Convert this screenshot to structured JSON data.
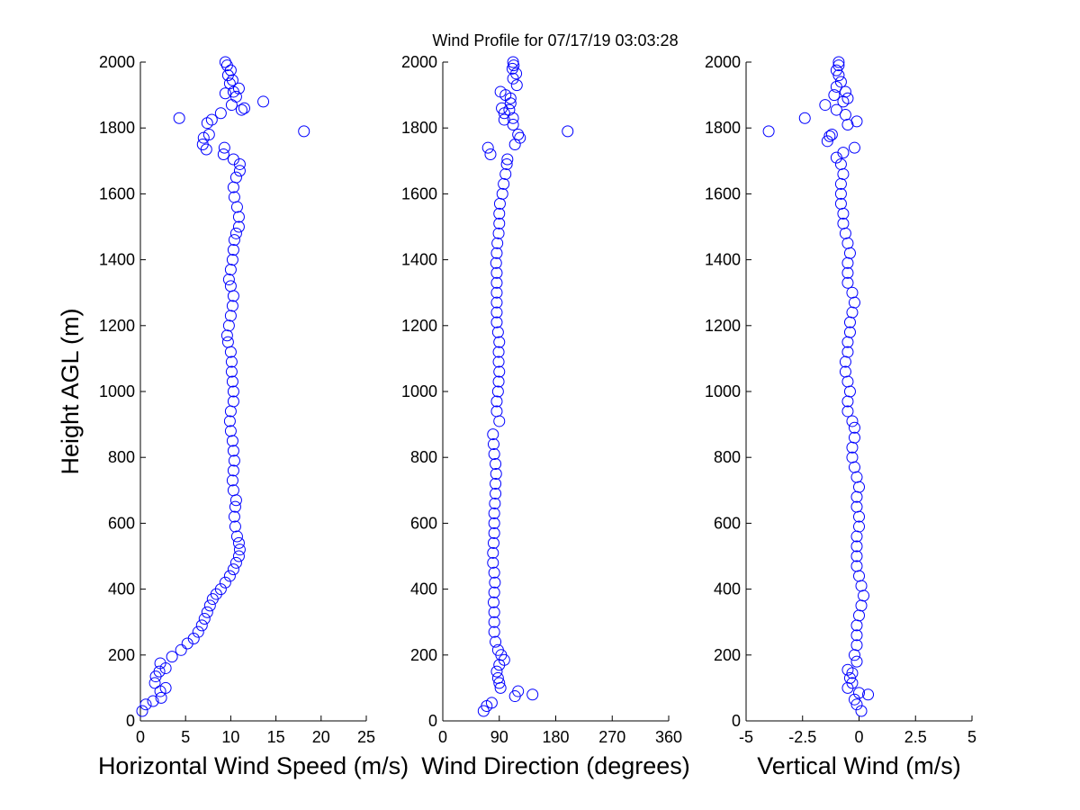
{
  "figure_title": "Wind Profile for  07/17/19 03:03:28",
  "colors": {
    "marker": "#0000ff",
    "axis": "#000000",
    "background": "#ffffff"
  },
  "chart_data": [
    {
      "type": "scatter",
      "xlabel": "Horizontal Wind Speed (m/s)",
      "ylabel": "Height AGL (m)",
      "xlim": [
        0,
        25
      ],
      "ylim": [
        0,
        2000
      ],
      "xticks": [
        "0",
        "5",
        "10",
        "15",
        "20",
        "25"
      ],
      "yticks": [
        "0",
        "200",
        "400",
        "600",
        "800",
        "1000",
        "1200",
        "1400",
        "1600",
        "1800",
        "2000"
      ],
      "marker": "open-circle",
      "grid": false,
      "points": [
        [
          0.2,
          30
        ],
        [
          0.6,
          50
        ],
        [
          1.4,
          60
        ],
        [
          2.3,
          70
        ],
        [
          2.8,
          100
        ],
        [
          2.2,
          90
        ],
        [
          1.6,
          115
        ],
        [
          1.7,
          135
        ],
        [
          2.1,
          150
        ],
        [
          2.8,
          160
        ],
        [
          2.2,
          175
        ],
        [
          3.5,
          195
        ],
        [
          4.5,
          215
        ],
        [
          5.2,
          235
        ],
        [
          5.9,
          250
        ],
        [
          6.4,
          270
        ],
        [
          6.8,
          290
        ],
        [
          7.1,
          310
        ],
        [
          7.4,
          330
        ],
        [
          7.7,
          350
        ],
        [
          8.0,
          370
        ],
        [
          8.4,
          385
        ],
        [
          8.9,
          400
        ],
        [
          9.4,
          420
        ],
        [
          9.9,
          440
        ],
        [
          10.3,
          460
        ],
        [
          10.6,
          480
        ],
        [
          10.9,
          500
        ],
        [
          11.0,
          520
        ],
        [
          10.9,
          540
        ],
        [
          10.7,
          560
        ],
        [
          10.5,
          590
        ],
        [
          10.4,
          620
        ],
        [
          10.5,
          650
        ],
        [
          10.6,
          670
        ],
        [
          10.3,
          700
        ],
        [
          10.2,
          730
        ],
        [
          10.3,
          760
        ],
        [
          10.4,
          790
        ],
        [
          10.3,
          820
        ],
        [
          10.2,
          850
        ],
        [
          10.0,
          880
        ],
        [
          9.9,
          910
        ],
        [
          10.0,
          940
        ],
        [
          10.3,
          970
        ],
        [
          10.3,
          1000
        ],
        [
          10.2,
          1030
        ],
        [
          10.1,
          1060
        ],
        [
          10.1,
          1090
        ],
        [
          10.0,
          1120
        ],
        [
          9.7,
          1150
        ],
        [
          9.6,
          1170
        ],
        [
          9.8,
          1200
        ],
        [
          10.0,
          1230
        ],
        [
          10.2,
          1260
        ],
        [
          10.3,
          1290
        ],
        [
          10.0,
          1320
        ],
        [
          9.8,
          1340
        ],
        [
          10.0,
          1370
        ],
        [
          10.2,
          1400
        ],
        [
          10.3,
          1430
        ],
        [
          10.4,
          1460
        ],
        [
          10.6,
          1480
        ],
        [
          10.9,
          1500
        ],
        [
          10.9,
          1530
        ],
        [
          10.7,
          1560
        ],
        [
          10.4,
          1590
        ],
        [
          10.3,
          1620
        ],
        [
          10.6,
          1650
        ],
        [
          11.0,
          1670
        ],
        [
          11.0,
          1690
        ],
        [
          10.3,
          1705
        ],
        [
          9.2,
          1720
        ],
        [
          9.3,
          1740
        ],
        [
          7.3,
          1735
        ],
        [
          6.9,
          1750
        ],
        [
          7.0,
          1770
        ],
        [
          7.6,
          1780
        ],
        [
          18.1,
          1790
        ],
        [
          7.4,
          1815
        ],
        [
          7.9,
          1825
        ],
        [
          4.3,
          1830
        ],
        [
          8.9,
          1845
        ],
        [
          11.2,
          1855
        ],
        [
          11.5,
          1860
        ],
        [
          10.1,
          1870
        ],
        [
          13.6,
          1880
        ],
        [
          10.6,
          1895
        ],
        [
          9.4,
          1905
        ],
        [
          10.3,
          1910
        ],
        [
          10.9,
          1920
        ],
        [
          9.9,
          1935
        ],
        [
          10.2,
          1945
        ],
        [
          9.7,
          1960
        ],
        [
          10.0,
          1975
        ],
        [
          9.6,
          1990
        ],
        [
          9.4,
          2000
        ]
      ]
    },
    {
      "type": "scatter",
      "xlabel": "Wind Direction (degrees)",
      "ylabel": "",
      "xlim": [
        0,
        360
      ],
      "ylim": [
        0,
        2000
      ],
      "xticks": [
        "0",
        "90",
        "180",
        "270",
        "360"
      ],
      "yticks": [
        "0",
        "200",
        "400",
        "600",
        "800",
        "1000",
        "1200",
        "1400",
        "1600",
        "1800",
        "2000"
      ],
      "marker": "open-circle",
      "grid": false,
      "points": [
        [
          65,
          30
        ],
        [
          70,
          45
        ],
        [
          78,
          55
        ],
        [
          143,
          80
        ],
        [
          120,
          90
        ],
        [
          115,
          75
        ],
        [
          92,
          100
        ],
        [
          90,
          115
        ],
        [
          88,
          130
        ],
        [
          86,
          150
        ],
        [
          90,
          170
        ],
        [
          98,
          185
        ],
        [
          93,
          200
        ],
        [
          88,
          215
        ],
        [
          84,
          240
        ],
        [
          82,
          270
        ],
        [
          82,
          300
        ],
        [
          82,
          330
        ],
        [
          81,
          360
        ],
        [
          82,
          390
        ],
        [
          83,
          420
        ],
        [
          82,
          450
        ],
        [
          80,
          480
        ],
        [
          80,
          510
        ],
        [
          81,
          540
        ],
        [
          82,
          570
        ],
        [
          82,
          600
        ],
        [
          82,
          630
        ],
        [
          83,
          660
        ],
        [
          84,
          690
        ],
        [
          84,
          720
        ],
        [
          85,
          750
        ],
        [
          84,
          780
        ],
        [
          82,
          810
        ],
        [
          81,
          840
        ],
        [
          80,
          870
        ],
        [
          90,
          910
        ],
        [
          86,
          940
        ],
        [
          86,
          970
        ],
        [
          88,
          1000
        ],
        [
          89,
          1030
        ],
        [
          90,
          1060
        ],
        [
          89,
          1090
        ],
        [
          89,
          1120
        ],
        [
          90,
          1150
        ],
        [
          88,
          1180
        ],
        [
          86,
          1210
        ],
        [
          86,
          1240
        ],
        [
          86,
          1270
        ],
        [
          86,
          1300
        ],
        [
          86,
          1330
        ],
        [
          86,
          1360
        ],
        [
          85,
          1390
        ],
        [
          86,
          1420
        ],
        [
          87,
          1450
        ],
        [
          89,
          1480
        ],
        [
          90,
          1510
        ],
        [
          90,
          1540
        ],
        [
          91,
          1570
        ],
        [
          95,
          1600
        ],
        [
          97,
          1630
        ],
        [
          100,
          1660
        ],
        [
          102,
          1690
        ],
        [
          103,
          1705
        ],
        [
          76,
          1720
        ],
        [
          72,
          1740
        ],
        [
          115,
          1750
        ],
        [
          123,
          1770
        ],
        [
          120,
          1780
        ],
        [
          199,
          1790
        ],
        [
          112,
          1810
        ],
        [
          98,
          1825
        ],
        [
          112,
          1830
        ],
        [
          98,
          1845
        ],
        [
          106,
          1855
        ],
        [
          94,
          1860
        ],
        [
          108,
          1875
        ],
        [
          108,
          1890
        ],
        [
          100,
          1900
        ],
        [
          92,
          1910
        ],
        [
          118,
          1930
        ],
        [
          112,
          1950
        ],
        [
          117,
          1965
        ],
        [
          111,
          1980
        ],
        [
          113,
          1990
        ],
        [
          112,
          2000
        ]
      ]
    },
    {
      "type": "scatter",
      "xlabel": "Vertical Wind (m/s)",
      "ylabel": "",
      "xlim": [
        -5,
        5
      ],
      "ylim": [
        0,
        2000
      ],
      "xticks": [
        "-5",
        "-2.5",
        "0",
        "2.5",
        "5"
      ],
      "yticks": [
        "0",
        "200",
        "400",
        "600",
        "800",
        "1000",
        "1200",
        "1400",
        "1600",
        "1800",
        "2000"
      ],
      "marker": "open-circle",
      "grid": false,
      "points": [
        [
          0.1,
          30
        ],
        [
          -0.1,
          50
        ],
        [
          -0.2,
          65
        ],
        [
          0.4,
          80
        ],
        [
          0.0,
          85
        ],
        [
          -0.5,
          100
        ],
        [
          -0.3,
          115
        ],
        [
          -0.4,
          130
        ],
        [
          -0.3,
          145
        ],
        [
          -0.5,
          155
        ],
        [
          -0.1,
          180
        ],
        [
          -0.2,
          200
        ],
        [
          -0.1,
          230
        ],
        [
          -0.1,
          260
        ],
        [
          -0.1,
          290
        ],
        [
          -0.0,
          320
        ],
        [
          0.1,
          350
        ],
        [
          0.2,
          380
        ],
        [
          0.1,
          410
        ],
        [
          0.0,
          440
        ],
        [
          -0.1,
          470
        ],
        [
          -0.1,
          500
        ],
        [
          -0.1,
          530
        ],
        [
          -0.1,
          560
        ],
        [
          0.0,
          590
        ],
        [
          -0.0,
          620
        ],
        [
          -0.1,
          650
        ],
        [
          -0.1,
          680
        ],
        [
          -0.0,
          710
        ],
        [
          -0.1,
          740
        ],
        [
          -0.2,
          770
        ],
        [
          -0.3,
          800
        ],
        [
          -0.3,
          830
        ],
        [
          -0.2,
          860
        ],
        [
          -0.2,
          890
        ],
        [
          -0.3,
          910
        ],
        [
          -0.5,
          940
        ],
        [
          -0.5,
          970
        ],
        [
          -0.4,
          1000
        ],
        [
          -0.5,
          1030
        ],
        [
          -0.6,
          1060
        ],
        [
          -0.6,
          1090
        ],
        [
          -0.5,
          1120
        ],
        [
          -0.5,
          1150
        ],
        [
          -0.4,
          1180
        ],
        [
          -0.4,
          1210
        ],
        [
          -0.3,
          1240
        ],
        [
          -0.2,
          1270
        ],
        [
          -0.3,
          1300
        ],
        [
          -0.5,
          1330
        ],
        [
          -0.5,
          1360
        ],
        [
          -0.5,
          1390
        ],
        [
          -0.4,
          1420
        ],
        [
          -0.5,
          1450
        ],
        [
          -0.6,
          1480
        ],
        [
          -0.7,
          1510
        ],
        [
          -0.7,
          1540
        ],
        [
          -0.8,
          1570
        ],
        [
          -0.8,
          1600
        ],
        [
          -0.8,
          1630
        ],
        [
          -0.7,
          1660
        ],
        [
          -0.8,
          1690
        ],
        [
          -1.0,
          1710
        ],
        [
          -0.7,
          1725
        ],
        [
          -0.2,
          1740
        ],
        [
          -1.4,
          1760
        ],
        [
          -1.3,
          1775
        ],
        [
          -1.2,
          1780
        ],
        [
          -4.0,
          1790
        ],
        [
          -0.5,
          1810
        ],
        [
          -0.1,
          1820
        ],
        [
          -2.4,
          1830
        ],
        [
          -0.6,
          1840
        ],
        [
          -1.0,
          1855
        ],
        [
          -1.5,
          1870
        ],
        [
          -0.7,
          1880
        ],
        [
          -0.5,
          1890
        ],
        [
          -1.1,
          1900
        ],
        [
          -0.6,
          1910
        ],
        [
          -1.0,
          1925
        ],
        [
          -0.8,
          1940
        ],
        [
          -0.9,
          1960
        ],
        [
          -1.0,
          1975
        ],
        [
          -0.9,
          1990
        ],
        [
          -0.9,
          2000
        ]
      ]
    }
  ]
}
